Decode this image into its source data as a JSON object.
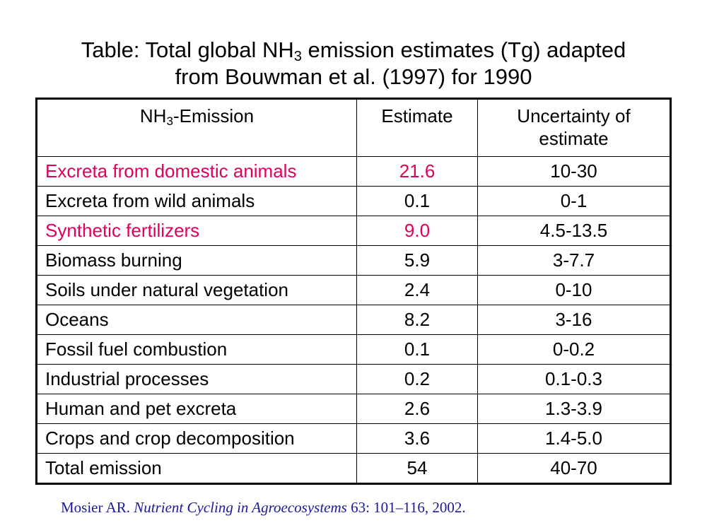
{
  "title": {
    "line1_pre": "Table:  Total global NH",
    "line1_sub": "3",
    "line1_post": " emission estimates (Tg) adapted",
    "line2": "from Bouwman et al. (1997) for 1990"
  },
  "table": {
    "headers": {
      "col1_pre": "NH",
      "col1_sub": "3",
      "col1_post": "-Emission",
      "col2": "Estimate",
      "col3_line1": "Uncertainty of",
      "col3_line2": "estimate"
    },
    "highlight_color": "#e0005a",
    "rows": [
      {
        "source": "Excreta from domestic animals",
        "estimate": "21.6",
        "uncertainty": "10-30",
        "highlighted": true
      },
      {
        "source": "Excreta from wild animals",
        "estimate": "0.1",
        "uncertainty": "0-1",
        "highlighted": false
      },
      {
        "source": "Synthetic fertilizers",
        "estimate": "9.0",
        "uncertainty": "4.5-13.5",
        "highlighted": true
      },
      {
        "source": "Biomass burning",
        "estimate": "5.9",
        "uncertainty": "3-7.7",
        "highlighted": false
      },
      {
        "source": "Soils under natural vegetation",
        "estimate": "2.4",
        "uncertainty": "0-10",
        "highlighted": false
      },
      {
        "source": "Oceans",
        "estimate": "8.2",
        "uncertainty": "3-16",
        "highlighted": false
      },
      {
        "source": "Fossil fuel combustion",
        "estimate": "0.1",
        "uncertainty": "0-0.2",
        "highlighted": false
      },
      {
        "source": "Industrial processes",
        "estimate": "0.2",
        "uncertainty": "0.1-0.3",
        "highlighted": false
      },
      {
        "source": "Human and pet excreta",
        "estimate": "2.6",
        "uncertainty": "1.3-3.9",
        "highlighted": false
      },
      {
        "source": "Crops and crop decomposition",
        "estimate": "3.6",
        "uncertainty": "1.4-5.0",
        "highlighted": false
      },
      {
        "source": "Total emission",
        "estimate": "54",
        "uncertainty": "40-70",
        "highlighted": false
      }
    ]
  },
  "citation": {
    "author": "Mosier AR. ",
    "journal": "Nutrient Cycling in Agroecosystems",
    "rest": " 63: 101–116, 2002."
  }
}
